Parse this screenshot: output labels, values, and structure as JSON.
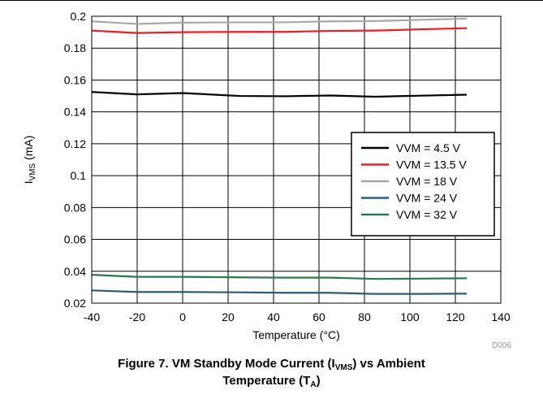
{
  "figure": {
    "caption_line1_pre": "Figure 7. VM Standby Mode Current (I",
    "caption_line1_sub": "VMS",
    "caption_line1_post": ") vs Ambient",
    "caption_line2_pre": "Temperature (T",
    "caption_line2_sub": "A",
    "caption_line2_post": ")",
    "code": "D006"
  },
  "chart_data": {
    "type": "line",
    "xlabel": "Temperature (°C)",
    "ylabel_main": "I",
    "ylabel_sub": "VMS",
    "ylabel_unit": " (mA)",
    "xlim": [
      -40,
      140
    ],
    "ylim": [
      0.02,
      0.2
    ],
    "xticks": [
      -40,
      -20,
      0,
      20,
      40,
      60,
      80,
      100,
      120,
      140
    ],
    "yticks": [
      0.02,
      0.04,
      0.06,
      0.08,
      0.1,
      0.12,
      0.14,
      0.16,
      0.18,
      0.2
    ],
    "ytick_labels": [
      "0.02",
      "0.04",
      "0.06",
      "0.08",
      "0.1",
      "0.12",
      "0.14",
      "0.16",
      "0.18",
      "0.2"
    ],
    "grid": true,
    "legend_position": "right",
    "x": [
      -40,
      -20,
      0,
      25,
      45,
      65,
      85,
      105,
      125
    ],
    "series": [
      {
        "name": "VVM = 4.5 V",
        "color": "#000000",
        "values": [
          0.1525,
          0.151,
          0.1518,
          0.15,
          0.1498,
          0.1503,
          0.1495,
          0.1502,
          0.1508
        ]
      },
      {
        "name": "VVM = 13.5 V",
        "color": "#ee1c25",
        "values": [
          0.191,
          0.1895,
          0.19,
          0.1902,
          0.1902,
          0.1908,
          0.191,
          0.1918,
          0.1925
        ]
      },
      {
        "name": "VVM = 18 V",
        "color": "#a8a8a8",
        "values": [
          0.1968,
          0.1952,
          0.196,
          0.1962,
          0.1962,
          0.1968,
          0.197,
          0.1978,
          0.1985
        ]
      },
      {
        "name": "VVM = 24 V",
        "color": "#2e5a78",
        "values": [
          0.028,
          0.027,
          0.027,
          0.0268,
          0.0265,
          0.0265,
          0.0258,
          0.0258,
          0.026
        ]
      },
      {
        "name": "VVM = 32 V",
        "color": "#2a7a4e",
        "values": [
          0.0378,
          0.0365,
          0.0365,
          0.0362,
          0.036,
          0.036,
          0.0352,
          0.0354,
          0.0356
        ]
      }
    ]
  }
}
